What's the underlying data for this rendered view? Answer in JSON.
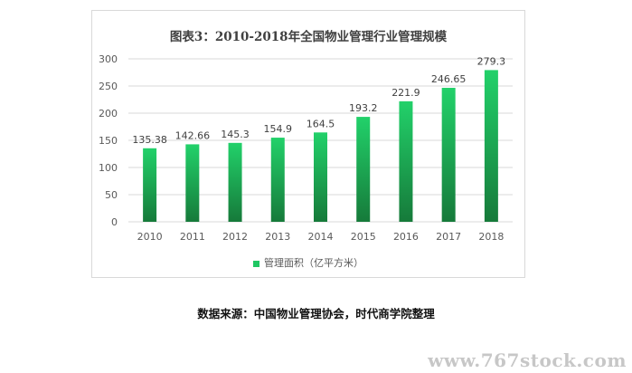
{
  "chart_data": {
    "type": "bar",
    "title": "图表3：2010-2018年全国物业管理行业管理规模",
    "categories": [
      "2010",
      "2011",
      "2012",
      "2013",
      "2014",
      "2015",
      "2016",
      "2017",
      "2018"
    ],
    "series": [
      {
        "name": "管理面积（亿平方米）",
        "values": [
          135.38,
          142.66,
          145.3,
          154.9,
          164.5,
          193.2,
          221.9,
          246.65,
          279.3
        ],
        "value_labels": [
          "135.38",
          "142.66",
          "145.3",
          "154.9",
          "164.5",
          "193.2",
          "221.9",
          "246.65",
          "279.3"
        ]
      }
    ],
    "ylim": [
      0,
      300
    ],
    "yticks": [
      "0",
      "50",
      "100",
      "150",
      "200",
      "250",
      "300"
    ],
    "xlabel": "",
    "ylabel": "",
    "grid": true,
    "legend_position": "bottom",
    "colors": {
      "bar_top": "#22d16a",
      "bar_bottom": "#167a3a",
      "legend": "#1fc763",
      "grid": "#d9d9d9"
    }
  },
  "source_note": "数据来源：中国物业管理协会，时代商学院整理",
  "watermark": "www.767stock.com"
}
